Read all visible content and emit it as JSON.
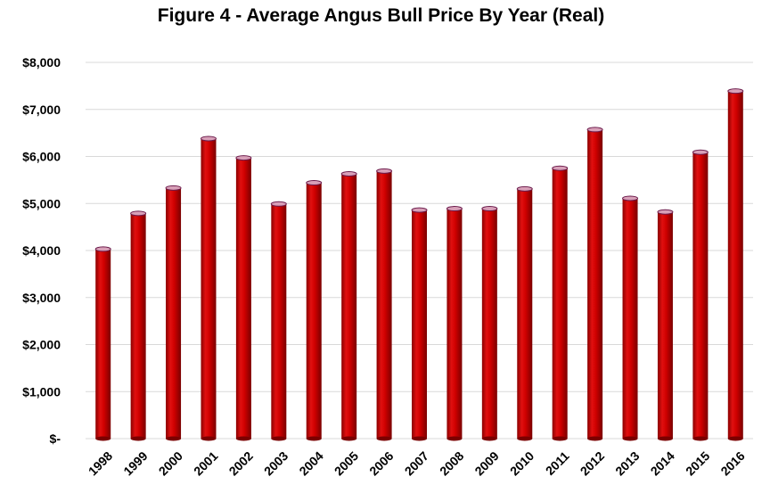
{
  "chart_data": {
    "type": "bar",
    "title": "Figure 4 - Average Angus Bull Price By Year (Real)",
    "xlabel": "",
    "ylabel": "",
    "categories": [
      "1998",
      "1999",
      "2000",
      "2001",
      "2002",
      "2003",
      "2004",
      "2005",
      "2006",
      "2007",
      "2008",
      "2009",
      "2010",
      "2011",
      "2012",
      "2013",
      "2014",
      "2015",
      "2016"
    ],
    "values": [
      4030,
      4790,
      5330,
      6380,
      5970,
      4990,
      5440,
      5630,
      5690,
      4860,
      4890,
      4890,
      5310,
      5750,
      6570,
      5110,
      4820,
      6090,
      7390
    ],
    "ylim": [
      0,
      8000
    ],
    "yticks": [
      0,
      1000,
      2000,
      3000,
      4000,
      5000,
      6000,
      7000,
      8000
    ],
    "ytick_labels": [
      "$-",
      "$1,000",
      "$2,000",
      "$3,000",
      "$4,000",
      "$5,000",
      "$6,000",
      "$7,000",
      "$8,000"
    ],
    "grid": true,
    "legend": "none",
    "bar_color": "#c00000",
    "bar_edge_color": "#7a0000",
    "bar_top_color": "#d8a0b8"
  }
}
